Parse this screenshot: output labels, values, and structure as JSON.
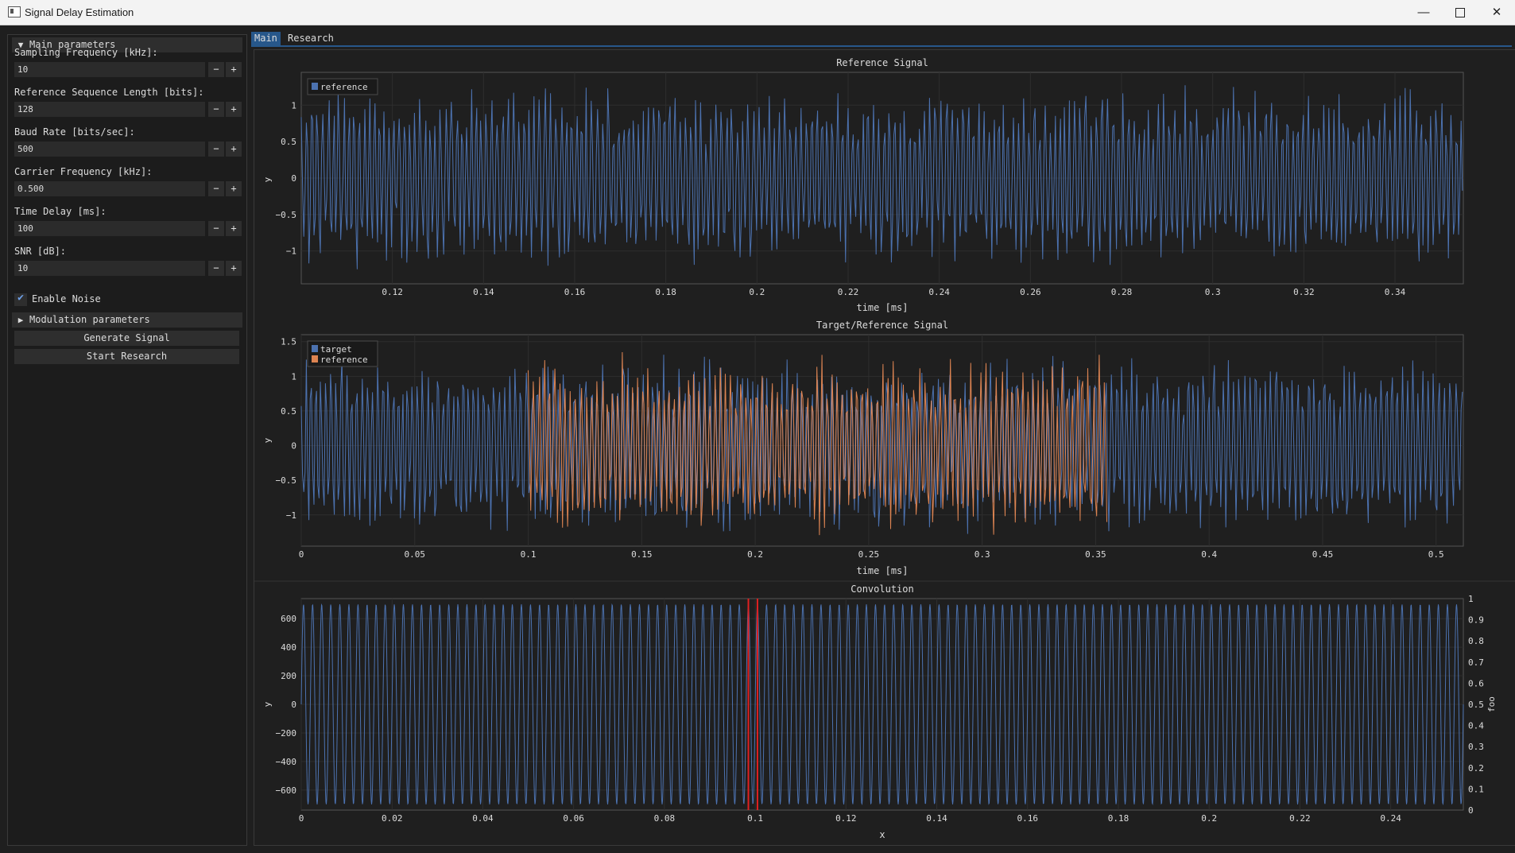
{
  "window": {
    "title": "Signal Delay Estimation",
    "min_glyph": "—",
    "close_glyph": "✕"
  },
  "tabs": [
    {
      "label": "Main",
      "active": true
    },
    {
      "label": "Research",
      "active": false
    }
  ],
  "sidebar": {
    "main_section": {
      "label": "Main parameters",
      "expanded": true
    },
    "fields": [
      {
        "label": "Sampling Frequency [kHz]:",
        "value": "10"
      },
      {
        "label": "Reference Sequence Length [bits]:",
        "value": "128"
      },
      {
        "label": "Baud Rate [bits/sec]:",
        "value": "500"
      },
      {
        "label": "Carrier Frequency [kHz]:",
        "value": "0.500"
      },
      {
        "label": "Time Delay [ms]:",
        "value": "100"
      },
      {
        "label": "SNR [dB]:",
        "value": "10"
      }
    ],
    "minus_glyph": "−",
    "plus_glyph": "+",
    "enable_noise": {
      "label": "Enable Noise",
      "checked": true
    },
    "modulation_section": {
      "label": "Modulation parameters",
      "expanded": false
    },
    "generate_button": "Generate Signal",
    "research_button": "Start Research"
  },
  "colors": {
    "series_blue": "#4c72b0",
    "series_orange": "#dd8452",
    "marker_red": "#e02020",
    "axis": "#555555",
    "grid": "#2e2e2e"
  },
  "chart_data": [
    {
      "type": "line",
      "title": "Reference Signal",
      "xlabel": "time [ms]",
      "ylabel": "y",
      "xlim": [
        0.1,
        0.355
      ],
      "ylim": [
        -1.45,
        1.45
      ],
      "xticks": [
        0.12,
        0.14,
        0.16,
        0.18,
        0.2,
        0.22,
        0.24,
        0.26,
        0.28,
        0.3,
        0.32,
        0.34
      ],
      "xtick_labels": [
        "0.12",
        "0.14",
        "0.16",
        "0.18",
        "0.2",
        "0.22",
        "0.24",
        "0.26",
        "0.28",
        "0.3",
        "0.32",
        "0.34"
      ],
      "yticks": [
        1,
        0.5,
        0,
        -0.5,
        -1
      ],
      "ytick_labels": [
        "1",
        "0.5",
        "0",
        "−0.5",
        "−1"
      ],
      "legend": {
        "placement": "top-left"
      },
      "series": [
        {
          "name": "reference",
          "color": "#4c72b0",
          "x_range": [
            0.1,
            0.355
          ],
          "amplitude": 1.2,
          "signal": "noisy-bpsk"
        }
      ]
    },
    {
      "type": "line",
      "title": "Target/Reference Signal",
      "xlabel": "time [ms]",
      "ylabel": "y",
      "xlim": [
        0,
        0.512
      ],
      "ylim": [
        -1.45,
        1.6
      ],
      "xticks": [
        0,
        0.05,
        0.1,
        0.15,
        0.2,
        0.25,
        0.3,
        0.35,
        0.4,
        0.45,
        0.5
      ],
      "xtick_labels": [
        "0",
        "0.05",
        "0.1",
        "0.15",
        "0.2",
        "0.25",
        "0.3",
        "0.35",
        "0.4",
        "0.45",
        "0.5"
      ],
      "yticks": [
        1.5,
        1,
        0.5,
        0,
        -0.5,
        -1
      ],
      "ytick_labels": [
        "1.5",
        "1",
        "0.5",
        "0",
        "−0.5",
        "−1"
      ],
      "legend": {
        "placement": "top-left"
      },
      "series": [
        {
          "name": "target",
          "color": "#4c72b0",
          "x_range": [
            0,
            0.512
          ],
          "amplitude": 1.25,
          "signal": "noisy-bpsk"
        },
        {
          "name": "reference",
          "color": "#dd8452",
          "x_range": [
            0.1,
            0.355
          ],
          "amplitude": 1.25,
          "signal": "noisy-bpsk"
        }
      ]
    },
    {
      "type": "line",
      "title": "Convolution",
      "xlabel": "x",
      "ylabel": "y",
      "y2label": "foo",
      "xlim": [
        0,
        0.256
      ],
      "ylim": [
        -740,
        740
      ],
      "y2lim": [
        0,
        1
      ],
      "xticks": [
        0,
        0.02,
        0.04,
        0.06,
        0.08,
        0.1,
        0.12,
        0.14,
        0.16,
        0.18,
        0.2,
        0.22,
        0.24
      ],
      "xtick_labels": [
        "0",
        "0.02",
        "0.04",
        "0.06",
        "0.08",
        "0.1",
        "0.12",
        "0.14",
        "0.16",
        "0.18",
        "0.2",
        "0.22",
        "0.24"
      ],
      "yticks": [
        600,
        400,
        200,
        0,
        -200,
        -400,
        -600
      ],
      "ytick_labels": [
        "600",
        "400",
        "200",
        "0",
        "−200",
        "−400",
        "−600"
      ],
      "y2ticks": [
        1,
        0.9,
        0.8,
        0.7,
        0.6,
        0.5,
        0.4,
        0.3,
        0.2,
        0.1,
        0
      ],
      "y2tick_labels": [
        "1",
        "0.9",
        "0.8",
        "0.7",
        "0.6",
        "0.5",
        "0.4",
        "0.3",
        "0.2",
        "0.1",
        "0"
      ],
      "series": [
        {
          "color": "#4c72b0",
          "x_range": [
            0,
            0.256
          ],
          "amplitude": 700,
          "cycles": 128,
          "signal": "sine"
        }
      ],
      "markers_x": [
        0.0985,
        0.1005
      ]
    }
  ]
}
